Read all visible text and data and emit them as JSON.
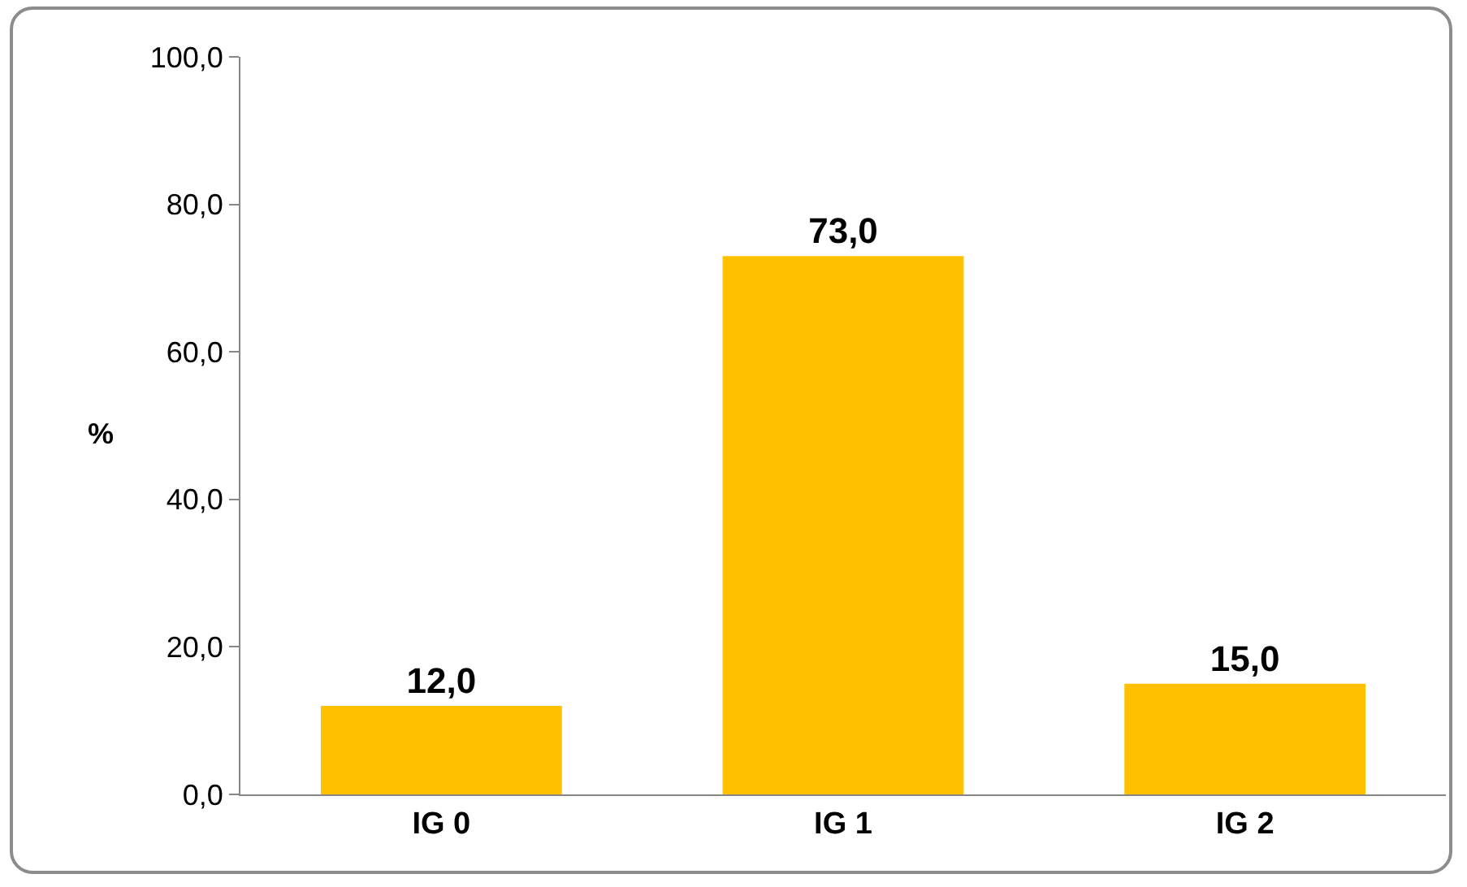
{
  "chart_data": {
    "type": "bar",
    "ylabel": "%",
    "categories": [
      "IG 0",
      "IG 1",
      "IG 2"
    ],
    "values": [
      12,
      73,
      15
    ],
    "color": "#ffc000",
    "value_labels": [
      "12,0",
      "73,0",
      "15,0"
    ],
    "ylim": [
      0,
      100
    ],
    "yticks": [
      {
        "value": 0,
        "label": "0,0"
      },
      {
        "value": 20,
        "label": "20,0"
      },
      {
        "value": 40,
        "label": "40,0"
      },
      {
        "value": 60,
        "label": "60,0"
      },
      {
        "value": 80,
        "label": "80,0"
      },
      {
        "value": 100,
        "label": "100,0"
      }
    ],
    "grid": false,
    "legend": false
  }
}
